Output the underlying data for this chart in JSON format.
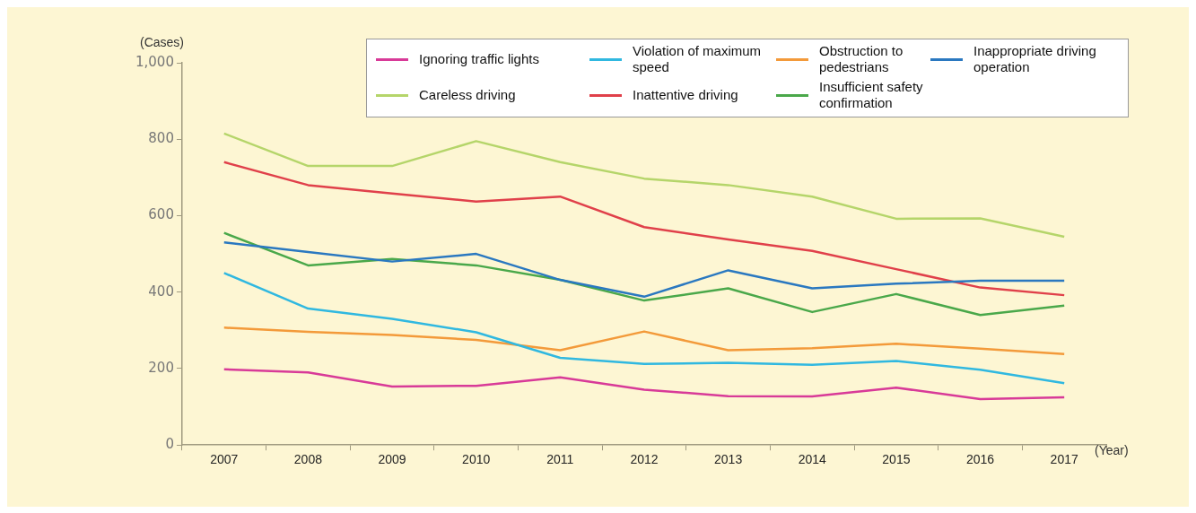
{
  "chart_data": {
    "type": "line",
    "ylabel": "(Cases)",
    "xlabel": "(Year)",
    "categories": [
      "2007",
      "2008",
      "2009",
      "2010",
      "2011",
      "2012",
      "2013",
      "2014",
      "2015",
      "2016",
      "2017"
    ],
    "series": [
      {
        "name": "Ignoring traffic lights",
        "color": "#d83a98",
        "values": [
          198,
          190,
          153,
          155,
          177,
          145,
          128,
          127,
          150,
          120,
          125
        ]
      },
      {
        "name": "Violation of maximum speed",
        "color": "#30b8e0",
        "values": [
          450,
          357,
          330,
          295,
          228,
          212,
          215,
          210,
          220,
          197,
          162
        ]
      },
      {
        "name": "Obstruction to pedestrians",
        "color": "#f39a3a",
        "values": [
          307,
          296,
          288,
          275,
          248,
          297,
          248,
          253,
          265,
          252,
          238
        ]
      },
      {
        "name": "Inappropriate driving operation",
        "color": "#2a78c0",
        "values": [
          530,
          505,
          480,
          500,
          432,
          388,
          457,
          410,
          422,
          430,
          430
        ]
      },
      {
        "name": "Careless driving",
        "color": "#b5d56a",
        "values": [
          815,
          730,
          730,
          795,
          740,
          697,
          680,
          650,
          592,
          593,
          545
        ]
      },
      {
        "name": "Inattentive driving",
        "color": "#e0404a",
        "values": [
          740,
          680,
          658,
          637,
          650,
          570,
          538,
          508,
          460,
          412,
          392
        ]
      },
      {
        "name": "Insufficient safety confirmation",
        "color": "#4aa84a",
        "values": [
          555,
          470,
          487,
          470,
          432,
          378,
          410,
          348,
          395,
          340,
          365
        ]
      }
    ],
    "ylim": [
      0,
      1000
    ],
    "yticks": [
      0,
      200,
      400,
      600,
      800,
      {
        "value": 1000,
        "label": "1,000"
      }
    ],
    "grid": false,
    "legend": "top right",
    "marker": "none",
    "line_style": "solid"
  }
}
